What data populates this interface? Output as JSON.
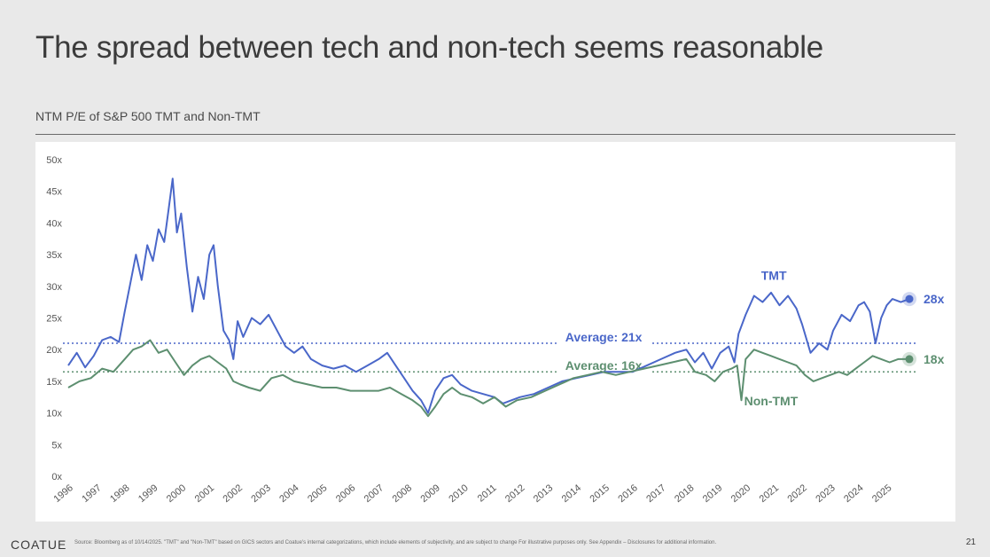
{
  "slide": {
    "title": "The spread between tech and non-tech seems reasonable",
    "footer_logo": "COATUE",
    "footer_source": "Source: Bloomberg as of 10/14/2025. \"TMT\" and \"Non-TMT\" based on GICS sectors and Coatue's internal categorizations, which include elements of subjectivity, and are subject to change For illustrative purposes only. See Appendix – Disclosures for additional information.",
    "page_number": "21"
  },
  "colors": {
    "tmt": "#4a67c9",
    "non_tmt": "#5d8f70",
    "axis_text": "#555555"
  },
  "chart_data": {
    "type": "line",
    "title": "NTM P/E of S&P 500 TMT and Non-TMT",
    "xlabel": "",
    "ylabel": "",
    "ylim": [
      0,
      50
    ],
    "xlim": [
      1996,
      2025.8
    ],
    "y_ticks": [
      "0x",
      "5x",
      "10x",
      "15x",
      "20x",
      "25x",
      "30x",
      "35x",
      "40x",
      "45x",
      "50x"
    ],
    "x_ticks": [
      "1996",
      "1997",
      "1998",
      "1999",
      "2000",
      "2001",
      "2002",
      "2003",
      "2004",
      "2005",
      "2006",
      "2007",
      "2008",
      "2009",
      "2010",
      "2011",
      "2012",
      "2013",
      "2014",
      "2015",
      "2016",
      "2017",
      "2018",
      "2019",
      "2020",
      "2021",
      "2022",
      "2023",
      "2024",
      "2025"
    ],
    "grid": false,
    "series": [
      {
        "name": "TMT",
        "end_label": "28x",
        "points": [
          [
            1996.0,
            17.5
          ],
          [
            1996.3,
            19.5
          ],
          [
            1996.6,
            17.2
          ],
          [
            1996.9,
            19.0
          ],
          [
            1997.2,
            21.5
          ],
          [
            1997.5,
            22.0
          ],
          [
            1997.8,
            21.2
          ],
          [
            1998.0,
            26.0
          ],
          [
            1998.2,
            30.5
          ],
          [
            1998.4,
            35.0
          ],
          [
            1998.6,
            31.0
          ],
          [
            1998.8,
            36.5
          ],
          [
            1999.0,
            34.0
          ],
          [
            1999.2,
            39.0
          ],
          [
            1999.4,
            37.0
          ],
          [
            1999.55,
            42.0
          ],
          [
            1999.7,
            47.0
          ],
          [
            1999.85,
            38.5
          ],
          [
            2000.0,
            41.5
          ],
          [
            2000.2,
            33.0
          ],
          [
            2000.4,
            26.0
          ],
          [
            2000.6,
            31.5
          ],
          [
            2000.8,
            28.0
          ],
          [
            2001.0,
            35.0
          ],
          [
            2001.15,
            36.5
          ],
          [
            2001.3,
            30.0
          ],
          [
            2001.5,
            23.0
          ],
          [
            2001.7,
            21.5
          ],
          [
            2001.85,
            18.5
          ],
          [
            2002.0,
            24.5
          ],
          [
            2002.2,
            22.0
          ],
          [
            2002.5,
            25.0
          ],
          [
            2002.8,
            24.0
          ],
          [
            2003.1,
            25.5
          ],
          [
            2003.4,
            23.0
          ],
          [
            2003.7,
            20.5
          ],
          [
            2004.0,
            19.5
          ],
          [
            2004.3,
            20.5
          ],
          [
            2004.6,
            18.5
          ],
          [
            2005.0,
            17.5
          ],
          [
            2005.4,
            17.0
          ],
          [
            2005.8,
            17.5
          ],
          [
            2006.2,
            16.5
          ],
          [
            2006.6,
            17.5
          ],
          [
            2007.0,
            18.5
          ],
          [
            2007.3,
            19.5
          ],
          [
            2007.6,
            17.5
          ],
          [
            2007.9,
            15.5
          ],
          [
            2008.2,
            13.5
          ],
          [
            2008.5,
            12.0
          ],
          [
            2008.75,
            10.0
          ],
          [
            2009.0,
            13.5
          ],
          [
            2009.3,
            15.5
          ],
          [
            2009.6,
            16.0
          ],
          [
            2009.9,
            14.5
          ],
          [
            2010.3,
            13.5
          ],
          [
            2010.7,
            13.0
          ],
          [
            2011.1,
            12.5
          ],
          [
            2011.4,
            11.5
          ],
          [
            2011.7,
            12.0
          ],
          [
            2012.0,
            12.5
          ],
          [
            2012.5,
            13.0
          ],
          [
            2013.0,
            14.0
          ],
          [
            2013.5,
            15.0
          ],
          [
            2014.0,
            15.5
          ],
          [
            2014.5,
            16.0
          ],
          [
            2015.0,
            16.5
          ],
          [
            2015.5,
            16.5
          ],
          [
            2016.0,
            16.5
          ],
          [
            2016.5,
            17.5
          ],
          [
            2017.0,
            18.5
          ],
          [
            2017.5,
            19.5
          ],
          [
            2017.9,
            20.0
          ],
          [
            2018.2,
            18.0
          ],
          [
            2018.5,
            19.5
          ],
          [
            2018.8,
            17.0
          ],
          [
            2019.1,
            19.5
          ],
          [
            2019.4,
            20.5
          ],
          [
            2019.6,
            18.0
          ],
          [
            2019.75,
            22.5
          ],
          [
            2020.0,
            25.5
          ],
          [
            2020.3,
            28.5
          ],
          [
            2020.6,
            27.5
          ],
          [
            2020.9,
            29.0
          ],
          [
            2021.2,
            27.0
          ],
          [
            2021.5,
            28.5
          ],
          [
            2021.8,
            26.5
          ],
          [
            2022.0,
            24.0
          ],
          [
            2022.3,
            19.5
          ],
          [
            2022.6,
            21.0
          ],
          [
            2022.9,
            20.0
          ],
          [
            2023.1,
            23.0
          ],
          [
            2023.4,
            25.5
          ],
          [
            2023.7,
            24.5
          ],
          [
            2024.0,
            27.0
          ],
          [
            2024.2,
            27.5
          ],
          [
            2024.4,
            26.0
          ],
          [
            2024.6,
            21.0
          ],
          [
            2024.8,
            25.0
          ],
          [
            2025.0,
            27.0
          ],
          [
            2025.2,
            28.0
          ],
          [
            2025.5,
            27.5
          ],
          [
            2025.8,
            28.0
          ]
        ]
      },
      {
        "name": "Non-TMT",
        "end_label": "18x",
        "points": [
          [
            1996.0,
            14.0
          ],
          [
            1996.4,
            15.0
          ],
          [
            1996.8,
            15.5
          ],
          [
            1997.2,
            17.0
          ],
          [
            1997.6,
            16.5
          ],
          [
            1998.0,
            18.5
          ],
          [
            1998.3,
            20.0
          ],
          [
            1998.6,
            20.5
          ],
          [
            1998.9,
            21.5
          ],
          [
            1999.2,
            19.5
          ],
          [
            1999.5,
            20.0
          ],
          [
            1999.8,
            18.0
          ],
          [
            2000.1,
            16.0
          ],
          [
            2000.4,
            17.5
          ],
          [
            2000.7,
            18.5
          ],
          [
            2001.0,
            19.0
          ],
          [
            2001.3,
            18.0
          ],
          [
            2001.6,
            17.0
          ],
          [
            2001.85,
            15.0
          ],
          [
            2002.1,
            14.5
          ],
          [
            2002.4,
            14.0
          ],
          [
            2002.8,
            13.5
          ],
          [
            2003.2,
            15.5
          ],
          [
            2003.6,
            16.0
          ],
          [
            2004.0,
            15.0
          ],
          [
            2004.5,
            14.5
          ],
          [
            2005.0,
            14.0
          ],
          [
            2005.5,
            14.0
          ],
          [
            2006.0,
            13.5
          ],
          [
            2006.5,
            13.5
          ],
          [
            2007.0,
            13.5
          ],
          [
            2007.4,
            14.0
          ],
          [
            2007.8,
            13.0
          ],
          [
            2008.2,
            12.0
          ],
          [
            2008.5,
            11.0
          ],
          [
            2008.75,
            9.5
          ],
          [
            2009.0,
            11.0
          ],
          [
            2009.3,
            13.0
          ],
          [
            2009.6,
            14.0
          ],
          [
            2009.9,
            13.0
          ],
          [
            2010.3,
            12.5
          ],
          [
            2010.7,
            11.5
          ],
          [
            2011.1,
            12.5
          ],
          [
            2011.5,
            11.0
          ],
          [
            2011.9,
            12.0
          ],
          [
            2012.4,
            12.5
          ],
          [
            2012.9,
            13.5
          ],
          [
            2013.4,
            14.5
          ],
          [
            2013.9,
            15.5
          ],
          [
            2014.4,
            16.0
          ],
          [
            2014.9,
            16.5
          ],
          [
            2015.4,
            16.0
          ],
          [
            2015.9,
            16.5
          ],
          [
            2016.4,
            17.0
          ],
          [
            2016.9,
            17.5
          ],
          [
            2017.4,
            18.0
          ],
          [
            2017.9,
            18.5
          ],
          [
            2018.2,
            16.5
          ],
          [
            2018.6,
            16.0
          ],
          [
            2018.9,
            15.0
          ],
          [
            2019.2,
            16.5
          ],
          [
            2019.5,
            17.0
          ],
          [
            2019.7,
            17.5
          ],
          [
            2019.85,
            12.0
          ],
          [
            2020.0,
            18.5
          ],
          [
            2020.3,
            20.0
          ],
          [
            2020.6,
            19.5
          ],
          [
            2020.9,
            19.0
          ],
          [
            2021.2,
            18.5
          ],
          [
            2021.5,
            18.0
          ],
          [
            2021.8,
            17.5
          ],
          [
            2022.1,
            16.0
          ],
          [
            2022.4,
            15.0
          ],
          [
            2022.7,
            15.5
          ],
          [
            2023.0,
            16.0
          ],
          [
            2023.3,
            16.5
          ],
          [
            2023.6,
            16.0
          ],
          [
            2023.9,
            17.0
          ],
          [
            2024.2,
            18.0
          ],
          [
            2024.5,
            19.0
          ],
          [
            2024.8,
            18.5
          ],
          [
            2025.1,
            18.0
          ],
          [
            2025.4,
            18.5
          ],
          [
            2025.8,
            18.5
          ]
        ]
      }
    ],
    "reference_lines": [
      {
        "label": "Average: 21x",
        "value": 21,
        "series": "TMT"
      },
      {
        "label": "Average: 16x",
        "value": 16.5,
        "series": "Non-TMT"
      }
    ],
    "annotations": [
      {
        "text": "TMT",
        "series": "TMT"
      },
      {
        "text": "Non-TMT",
        "series": "Non-TMT"
      }
    ]
  }
}
